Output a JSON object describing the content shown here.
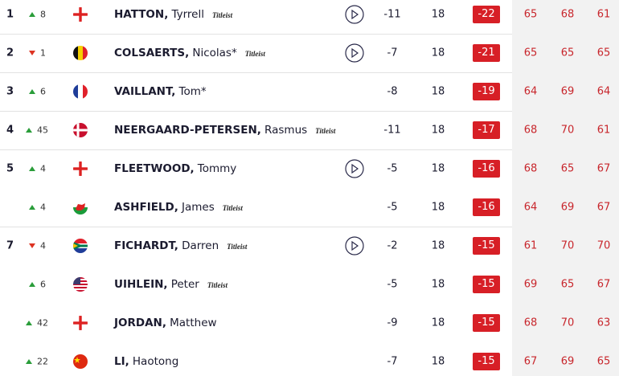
{
  "rows": [
    {
      "pos": 1,
      "move": 8,
      "last": "HATTON,",
      "first": "Tyrrell",
      "brand": "Titleist",
      "today": -11,
      "thru": 18,
      "total": -22,
      "r1": 65,
      "r2": 68,
      "r3": 61
    },
    {
      "pos": 2,
      "move": 1,
      "last": "COLSAERTS,",
      "first": "Nicolas*",
      "brand": "Titleist",
      "today": -7,
      "thru": 18,
      "total": -21,
      "r1": 65,
      "r2": 65,
      "r3": 65
    },
    {
      "pos": 3,
      "move": 6,
      "last": "VAILLANT,",
      "first": "Tom*",
      "today": -8,
      "thru": 18,
      "total": -19,
      "r1": 64,
      "r2": 69,
      "r3": 64
    },
    {
      "pos": 4,
      "move": 45,
      "last": "NEERGAARD-PETERSEN,",
      "first": "Rasmus",
      "brand": "Titleist",
      "today": -11,
      "thru": 18,
      "total": -17,
      "r1": 68,
      "r2": 70,
      "r3": 61
    },
    {
      "pos": 5,
      "move": 4,
      "last": "FLEETWOOD,",
      "first": "Tommy",
      "today": -5,
      "thru": 18,
      "total": -16,
      "r1": 68,
      "r2": 65,
      "r3": 67
    },
    {
      "move": 4,
      "last": "ASHFIELD,",
      "first": "James",
      "brand": "Titleist",
      "today": -5,
      "thru": 18,
      "total": -16,
      "r1": 64,
      "r2": 69,
      "r3": 67
    },
    {
      "pos": 7,
      "move": 4,
      "last": "FICHARDT,",
      "first": "Darren",
      "brand": "Titleist",
      "today": -2,
      "thru": 18,
      "total": -15,
      "r1": 61,
      "r2": 70,
      "r3": 70
    },
    {
      "move": 6,
      "last": "UIHLEIN,",
      "first": "Peter",
      "brand": "Titleist",
      "today": -5,
      "thru": 18,
      "total": -15,
      "r1": 69,
      "r2": 65,
      "r3": 67
    },
    {
      "move": 42,
      "last": "JORDAN,",
      "first": "Matthew",
      "today": -9,
      "thru": 18,
      "total": -15,
      "r1": 68,
      "r2": 70,
      "r3": 63
    },
    {
      "move": 22,
      "last": "LI,",
      "first": "Haotong",
      "today": -7,
      "thru": 18,
      "total": -15,
      "r1": 67,
      "r2": 69,
      "r3": 65
    }
  ]
}
